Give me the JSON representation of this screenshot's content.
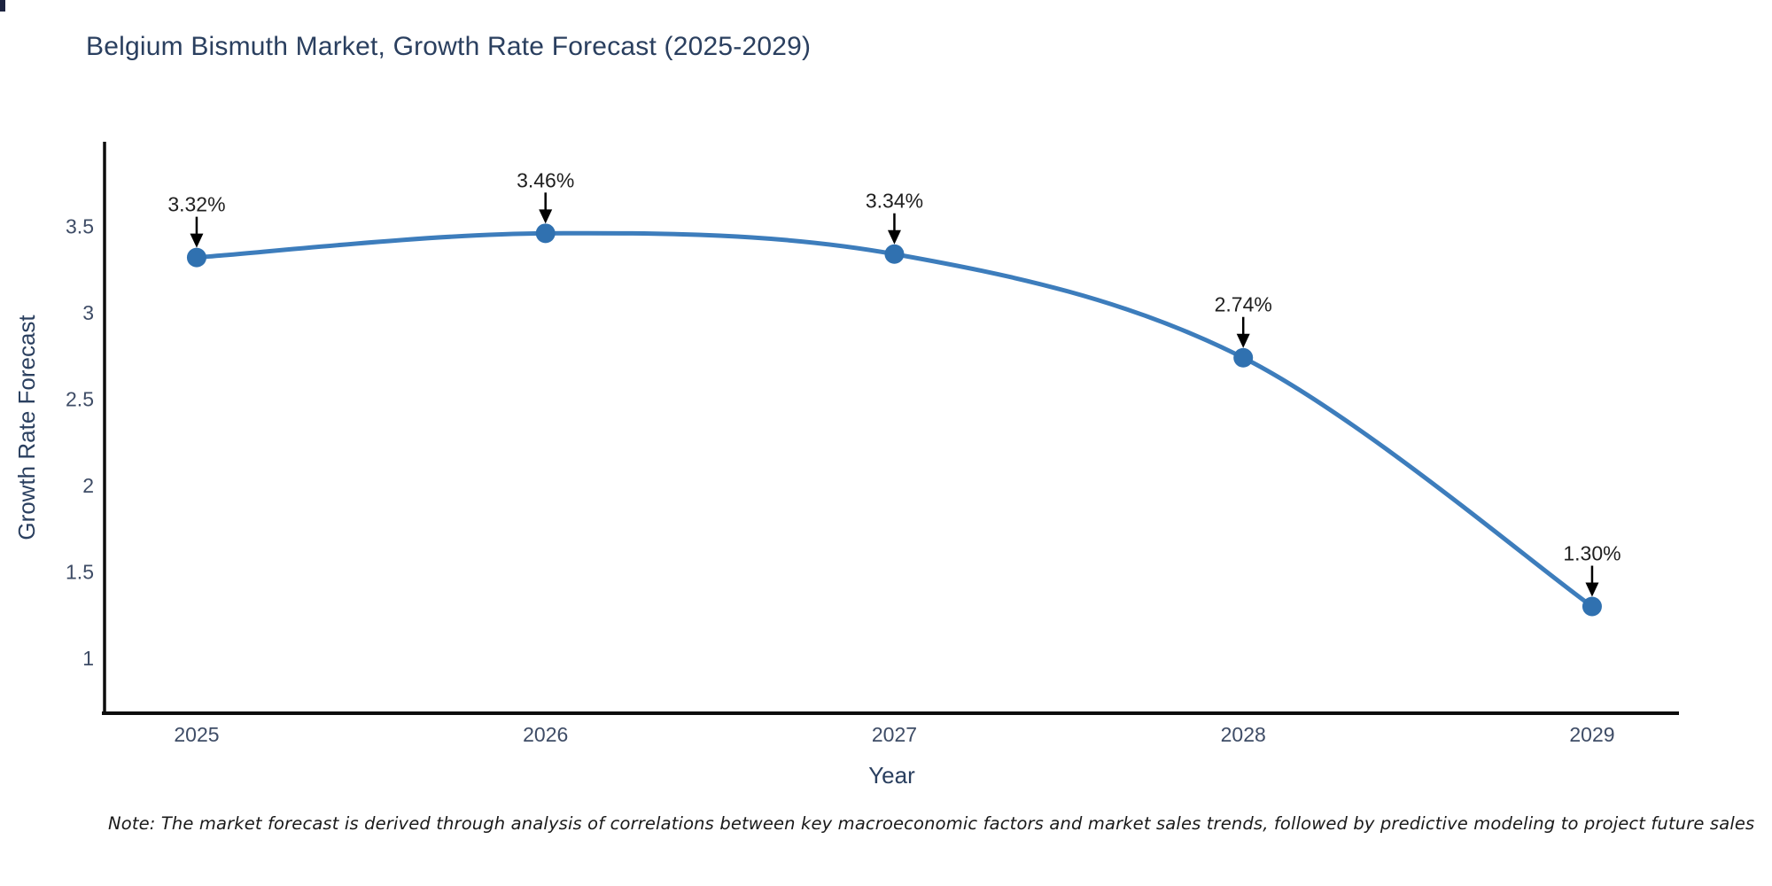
{
  "page": {
    "note": "Note: The market forecast is derived through analysis of correlations between key macroeconomic factors and market sales trends, followed by predictive modeling to project future sales"
  },
  "chart_data": {
    "type": "line",
    "title": "Belgium Bismuth Market, Growth Rate Forecast (2025-2029)",
    "xlabel": "Year",
    "ylabel": "Growth Rate Forecast",
    "categories": [
      2025,
      2026,
      2027,
      2028,
      2029
    ],
    "values": [
      3.32,
      3.46,
      3.34,
      2.74,
      1.3
    ],
    "point_labels": [
      "3.32%",
      "3.46%",
      "3.34%",
      "2.74%",
      "1.30%"
    ],
    "yticks": [
      1,
      1.5,
      2,
      2.5,
      3,
      3.5
    ],
    "ytick_labels": [
      "1",
      "1.5",
      "2",
      "2.5",
      "3",
      "3.5"
    ],
    "xlim": [
      2024.736,
      2029.249
    ],
    "ylim": [
      0.682,
      3.99
    ],
    "line_shape": "spline",
    "grid": false,
    "legend": false,
    "annotation_style": "down-arrow",
    "colors": {
      "line": "#3d7dbc",
      "marker": "#3071b0",
      "axis_line": "#0d0d0d",
      "title": "#2a3f5f",
      "axis_title": "#2a3f5f",
      "tick": "#3e4c66",
      "annotation": "#1f1f1f",
      "note": "#1a1a1a",
      "background": "#ffffff"
    }
  }
}
